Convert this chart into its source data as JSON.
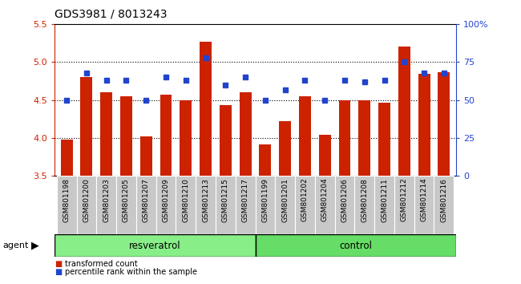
{
  "title": "GDS3981 / 8013243",
  "samples": [
    "GSM801198",
    "GSM801200",
    "GSM801203",
    "GSM801205",
    "GSM801207",
    "GSM801209",
    "GSM801210",
    "GSM801213",
    "GSM801215",
    "GSM801217",
    "GSM801199",
    "GSM801201",
    "GSM801202",
    "GSM801204",
    "GSM801206",
    "GSM801208",
    "GSM801211",
    "GSM801212",
    "GSM801214",
    "GSM801216"
  ],
  "transformed_count": [
    3.98,
    4.8,
    4.6,
    4.55,
    4.02,
    4.57,
    4.5,
    5.27,
    4.43,
    4.6,
    3.92,
    4.22,
    4.55,
    4.04,
    4.5,
    4.5,
    4.47,
    5.2,
    4.85,
    4.87
  ],
  "percentile_rank": [
    50,
    68,
    63,
    63,
    50,
    65,
    63,
    78,
    60,
    65,
    50,
    57,
    63,
    50,
    63,
    62,
    63,
    75,
    68,
    68
  ],
  "ylim": [
    3.5,
    5.5
  ],
  "yticks_left": [
    3.5,
    4.0,
    4.5,
    5.0,
    5.5
  ],
  "yticks_right": [
    0,
    25,
    50,
    75,
    100
  ],
  "right_ylabels": [
    "0",
    "25",
    "50",
    "75",
    "100%"
  ],
  "bar_color": "#cc2200",
  "dot_color": "#2244cc",
  "resveratrol_color": "#88ee88",
  "control_color": "#66dd66",
  "cell_color": "#c8c8c8",
  "cell_border": "#ffffff",
  "n_resveratrol": 10,
  "n_control": 10
}
